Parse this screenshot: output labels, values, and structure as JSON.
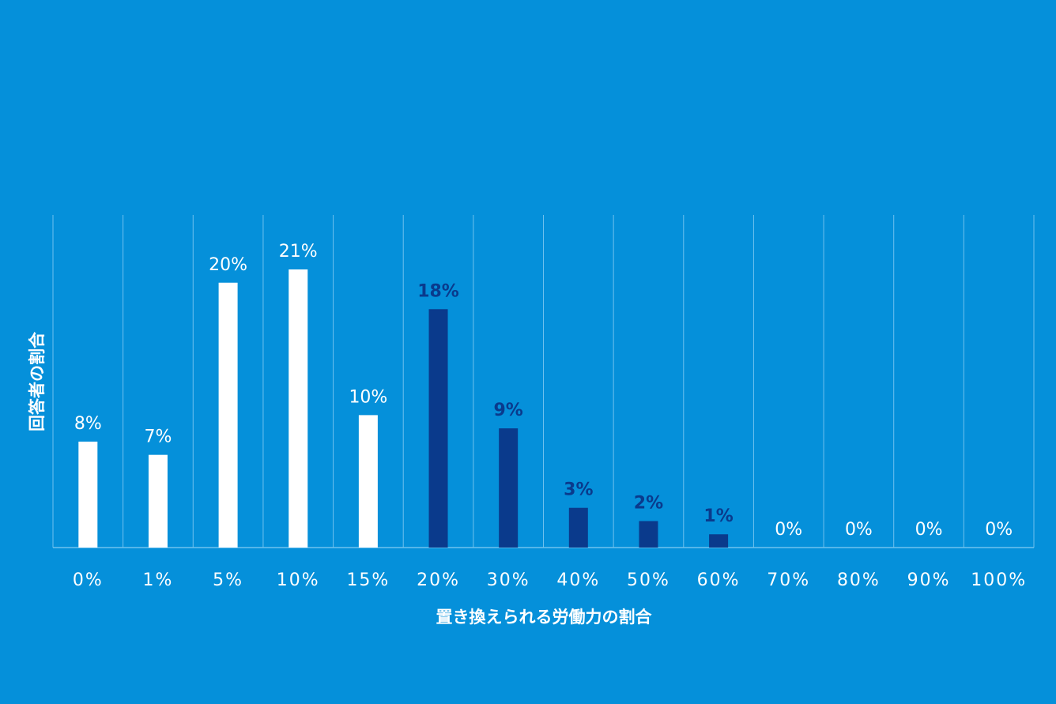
{
  "chart_data": {
    "type": "bar",
    "xlabel": "置き換えられる労働力の割合",
    "ylabel": "回答者の割合",
    "categories": [
      "0%",
      "1%",
      "5%",
      "10%",
      "15%",
      "20%",
      "30%",
      "40%",
      "50%",
      "60%",
      "70%",
      "80%",
      "90%",
      "100%"
    ],
    "values": [
      8,
      7,
      20,
      21,
      10,
      18,
      9,
      3,
      2,
      1,
      0,
      0,
      0,
      0
    ],
    "data_labels": [
      "8%",
      "7%",
      "20%",
      "21%",
      "10%",
      "18%",
      "9%",
      "3%",
      "2%",
      "1%",
      "0%",
      "0%",
      "0%",
      "0%"
    ],
    "bar_colors": [
      "#ffffff",
      "#ffffff",
      "#ffffff",
      "#ffffff",
      "#ffffff",
      "#0a3a8c",
      "#0a3a8c",
      "#0a3a8c",
      "#0a3a8c",
      "#0a3a8c",
      "#0a3a8c",
      "#0a3a8c",
      "#0a3a8c",
      "#0a3a8c"
    ],
    "label_colors": [
      "#ffffff",
      "#ffffff",
      "#ffffff",
      "#ffffff",
      "#ffffff",
      "#0a3a8c",
      "#0a3a8c",
      "#0a3a8c",
      "#0a3a8c",
      "#0a3a8c",
      "#ffffff",
      "#ffffff",
      "#ffffff",
      "#ffffff"
    ],
    "ylim": [
      0,
      25
    ],
    "grid": "vertical",
    "legend": "none"
  },
  "colors": {
    "background": "#0590da",
    "gridline": "#6fc1ee",
    "light_bar": "#ffffff",
    "dark_bar": "#0a3a8c"
  }
}
